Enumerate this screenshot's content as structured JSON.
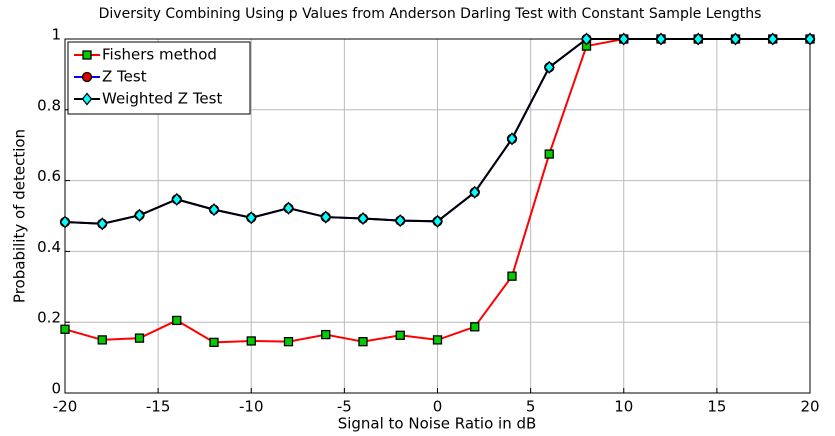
{
  "chart_data": {
    "type": "line",
    "title": "Diversity Combining Using p Values from Anderson Darling Test with Constant Sample Lengths",
    "x_label": "Signal to Noise Ratio in dB",
    "y_label": "Probability of detection",
    "x": [
      -20,
      -18,
      -16,
      -14,
      -12,
      -10,
      -8,
      -6,
      -4,
      -2,
      0,
      2,
      4,
      6,
      8,
      10,
      12,
      14,
      16,
      18,
      20
    ],
    "series": [
      {
        "name": "Fishers method",
        "color": "#ff0000",
        "marker": "square",
        "marker_color": "#00cc00",
        "values": [
          0.18,
          0.15,
          0.155,
          0.205,
          0.143,
          0.147,
          0.145,
          0.165,
          0.145,
          0.163,
          0.15,
          0.187,
          0.33,
          0.675,
          0.98,
          1,
          1,
          1,
          1,
          1,
          1
        ]
      },
      {
        "name": "Z Test",
        "color": "#0000ff",
        "marker": "circle",
        "marker_color": "#dd0000",
        "values": [
          0.483,
          0.478,
          0.502,
          0.547,
          0.518,
          0.495,
          0.522,
          0.497,
          0.493,
          0.487,
          0.485,
          0.567,
          0.718,
          0.92,
          1,
          1,
          1,
          1,
          1,
          1,
          1
        ]
      },
      {
        "name": "Weighted Z Test",
        "color": "#000000",
        "marker": "diamond",
        "marker_color": "#00ffff",
        "values": [
          0.483,
          0.478,
          0.502,
          0.547,
          0.518,
          0.495,
          0.522,
          0.497,
          0.493,
          0.487,
          0.485,
          0.567,
          0.718,
          0.92,
          1,
          1,
          1,
          1,
          1,
          1,
          1
        ]
      }
    ],
    "xlim": [
      -20,
      20
    ],
    "xticks": [
      -20,
      -15,
      -10,
      -5,
      0,
      5,
      10,
      15,
      20
    ],
    "ylim": [
      0,
      1
    ],
    "yticks": [
      0,
      0.2,
      0.4,
      0.6,
      0.8,
      1
    ],
    "grid": true,
    "legend": "upper left"
  }
}
